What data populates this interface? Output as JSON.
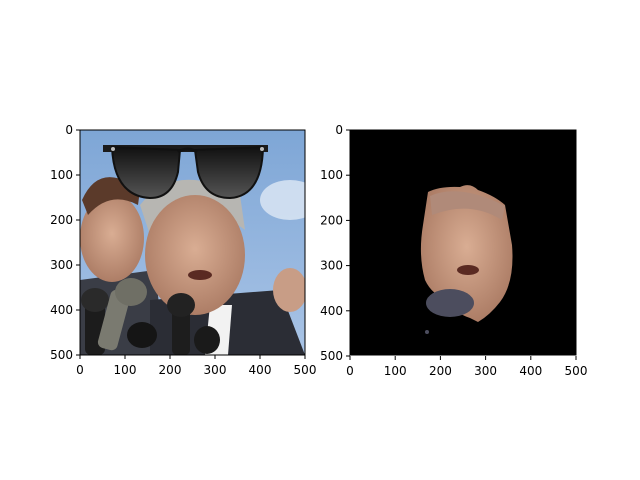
{
  "chart_data": [
    {
      "type": "image",
      "title": "",
      "xlabel": "",
      "ylabel": "",
      "xlim": [
        0,
        500
      ],
      "ylim": [
        500,
        0
      ],
      "xticks": [
        "0",
        "100",
        "200",
        "300",
        "400",
        "500"
      ],
      "yticks": [
        "0",
        "100",
        "200",
        "300",
        "400",
        "500"
      ],
      "image": {
        "content": "photo of two men at a press podium with microphones; cartoon sunglasses overlaid at top",
        "overlay": "sunglasses-icon"
      }
    },
    {
      "type": "image",
      "title": "",
      "xlabel": "",
      "ylabel": "",
      "xlim": [
        0,
        500
      ],
      "ylim": [
        500,
        0
      ],
      "xticks": [
        "0",
        "100",
        "200",
        "300",
        "400",
        "500"
      ],
      "yticks": [
        "0",
        "100",
        "200",
        "300",
        "400",
        "500"
      ],
      "image": {
        "content": "segmented face mask on black background",
        "background": "#000000"
      }
    }
  ],
  "colors": {
    "sky": "#8fb2dc",
    "suit": "#2b2d35",
    "skin": "#caa089",
    "mask_bg": "#000000"
  }
}
